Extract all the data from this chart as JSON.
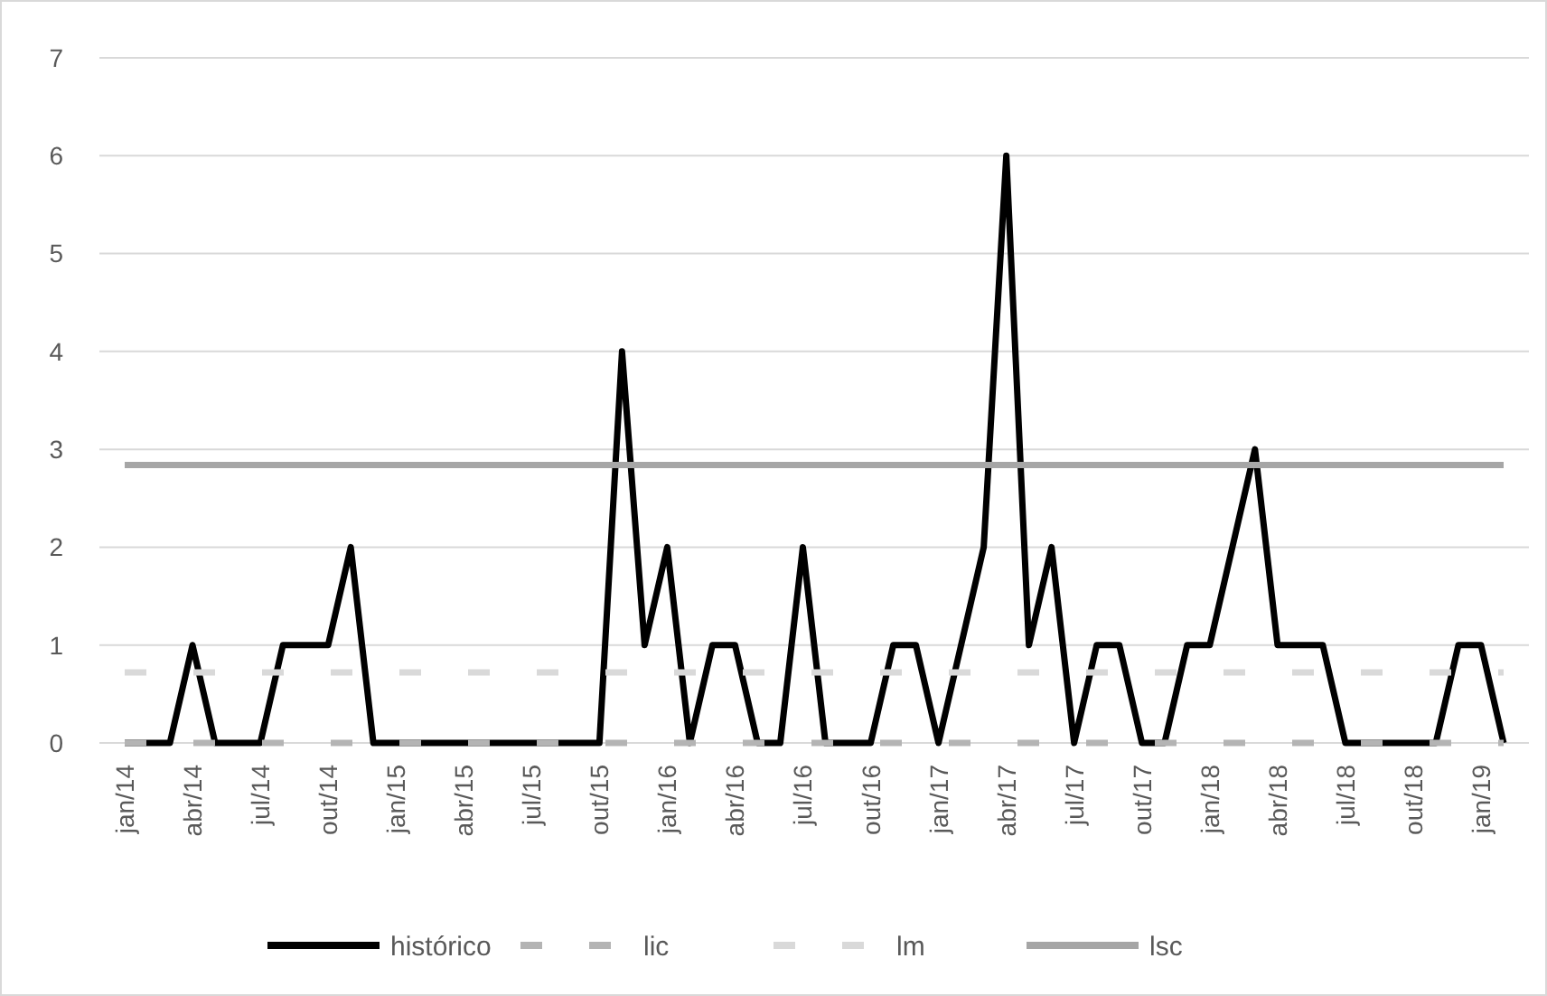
{
  "chart_data": {
    "type": "line",
    "categories": [
      "jan/14",
      null,
      null,
      "abr/14",
      null,
      null,
      "jul/14",
      null,
      null,
      "out/14",
      null,
      null,
      "jan/15",
      null,
      null,
      "abr/15",
      null,
      null,
      "jul/15",
      null,
      null,
      "out/15",
      null,
      null,
      "jan/16",
      null,
      null,
      "abr/16",
      null,
      null,
      "jul/16",
      null,
      null,
      "out/16",
      null,
      null,
      "jan/17",
      null,
      null,
      "abr/17",
      null,
      null,
      "jul/17",
      null,
      null,
      "out/17",
      null,
      null,
      "jan/18",
      null,
      null,
      "abr/18",
      null,
      null,
      "jul/18",
      null,
      null,
      "out/18",
      null,
      null,
      "jan/19",
      null
    ],
    "series": [
      {
        "name": "histórico",
        "color": "#000000",
        "line_style": "solid",
        "values": [
          0,
          0,
          0,
          1,
          0,
          0,
          0,
          1,
          1,
          1,
          2,
          0,
          0,
          0,
          0,
          0,
          0,
          0,
          0,
          0,
          0,
          0,
          4,
          1,
          2,
          0,
          1,
          1,
          0,
          0,
          2,
          0,
          0,
          0,
          1,
          1,
          0,
          1,
          2,
          6,
          1,
          2,
          0,
          1,
          1,
          0,
          0,
          1,
          1,
          2,
          3,
          1,
          1,
          1,
          0,
          0,
          0,
          0,
          0,
          1,
          1,
          0
        ]
      },
      {
        "name": "lic",
        "color": "#b4b4b4",
        "line_style": "dashed",
        "values": [
          0,
          0,
          0,
          0,
          0,
          0,
          0,
          0,
          0,
          0,
          0,
          0,
          0,
          0,
          0,
          0,
          0,
          0,
          0,
          0,
          0,
          0,
          0,
          0,
          0,
          0,
          0,
          0,
          0,
          0,
          0,
          0,
          0,
          0,
          0,
          0,
          0,
          0,
          0,
          0,
          0,
          0,
          0,
          0,
          0,
          0,
          0,
          0,
          0,
          0,
          0,
          0,
          0,
          0,
          0,
          0,
          0,
          0,
          0,
          0,
          0,
          0
        ]
      },
      {
        "name": "lm",
        "color": "#d9d9d9",
        "line_style": "dashed",
        "values": [
          0.72,
          0.72,
          0.72,
          0.72,
          0.72,
          0.72,
          0.72,
          0.72,
          0.72,
          0.72,
          0.72,
          0.72,
          0.72,
          0.72,
          0.72,
          0.72,
          0.72,
          0.72,
          0.72,
          0.72,
          0.72,
          0.72,
          0.72,
          0.72,
          0.72,
          0.72,
          0.72,
          0.72,
          0.72,
          0.72,
          0.72,
          0.72,
          0.72,
          0.72,
          0.72,
          0.72,
          0.72,
          0.72,
          0.72,
          0.72,
          0.72,
          0.72,
          0.72,
          0.72,
          0.72,
          0.72,
          0.72,
          0.72,
          0.72,
          0.72,
          0.72,
          0.72,
          0.72,
          0.72,
          0.72,
          0.72,
          0.72,
          0.72,
          0.72,
          0.72,
          0.72,
          0.72
        ]
      },
      {
        "name": "lsc",
        "color": "#a6a6a6",
        "line_style": "solid",
        "values": [
          2.84,
          2.84,
          2.84,
          2.84,
          2.84,
          2.84,
          2.84,
          2.84,
          2.84,
          2.84,
          2.84,
          2.84,
          2.84,
          2.84,
          2.84,
          2.84,
          2.84,
          2.84,
          2.84,
          2.84,
          2.84,
          2.84,
          2.84,
          2.84,
          2.84,
          2.84,
          2.84,
          2.84,
          2.84,
          2.84,
          2.84,
          2.84,
          2.84,
          2.84,
          2.84,
          2.84,
          2.84,
          2.84,
          2.84,
          2.84,
          2.84,
          2.84,
          2.84,
          2.84,
          2.84,
          2.84,
          2.84,
          2.84,
          2.84,
          2.84,
          2.84,
          2.84,
          2.84,
          2.84,
          2.84,
          2.84,
          2.84,
          2.84,
          2.84,
          2.84,
          2.84,
          2.84
        ]
      }
    ],
    "ylim": [
      0,
      7
    ],
    "yticks": [
      0,
      1,
      2,
      3,
      4,
      5,
      6,
      7
    ],
    "grid": "y",
    "legend": "bottom",
    "marker": "none"
  }
}
